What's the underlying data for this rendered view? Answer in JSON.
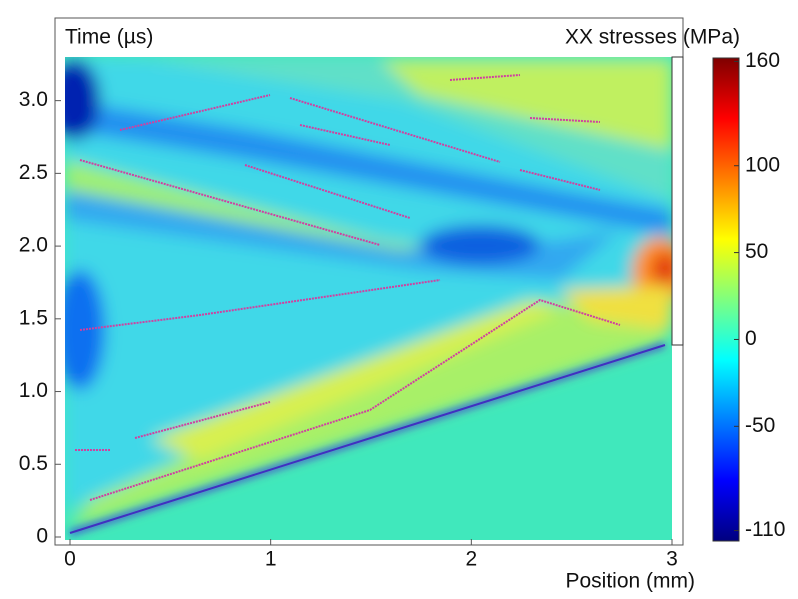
{
  "chart_data": {
    "type": "heatmap",
    "y_label": "Time (µs)",
    "x_label": "Position (mm)",
    "colorbar_label": "XX stresses (MPa)",
    "xlim": [
      0,
      3
    ],
    "xticks": [
      0,
      1,
      2,
      3
    ],
    "ylim": [
      0,
      3.3
    ],
    "yticks": [
      0,
      0.5,
      {
        "value": 1,
        "label": "1.0"
      },
      1.5,
      {
        "value": 2,
        "label": "2.0"
      },
      2.5,
      {
        "value": 3,
        "label": "3.0"
      }
    ],
    "clim": [
      -116,
      162
    ],
    "cticks": [
      -110,
      -50,
      0,
      50,
      100,
      160
    ],
    "colormap": [
      "#00007f",
      "#0000ff",
      "#007fff",
      "#00ffff",
      "#7fff7f",
      "#ffff00",
      "#ff7f00",
      "#ff0000",
      "#7f0000"
    ]
  }
}
